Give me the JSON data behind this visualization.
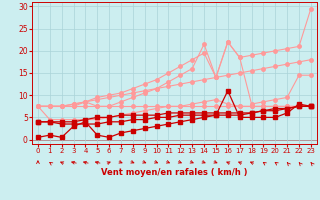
{
  "xlabel": "Vent moyen/en rafales ( km/h )",
  "xlim": [
    -0.5,
    23.5
  ],
  "ylim": [
    -1,
    31
  ],
  "xticks": [
    0,
    1,
    2,
    3,
    4,
    5,
    6,
    7,
    8,
    9,
    10,
    11,
    12,
    13,
    14,
    15,
    16,
    17,
    18,
    19,
    20,
    21,
    22,
    23
  ],
  "yticks": [
    0,
    5,
    10,
    15,
    20,
    25,
    30
  ],
  "bg_color": "#cceef0",
  "grid_color": "#aad4d8",
  "line_color_dark": "#cc0000",
  "line_color_light": "#ff9999",
  "series_light": [
    [
      7.5,
      7.5,
      7.5,
      7.5,
      7.5,
      7.5,
      7.5,
      7.5,
      7.5,
      7.5,
      7.5,
      7.5,
      7.5,
      7.5,
      7.5,
      7.5,
      7.5,
      7.5,
      7.5,
      7.5,
      7.5,
      7.5,
      7.5,
      7.5
    ],
    [
      7.5,
      7.5,
      7.5,
      8.0,
      8.5,
      9.0,
      9.5,
      10.0,
      10.5,
      11.0,
      11.5,
      12.0,
      12.5,
      13.0,
      13.5,
      14.0,
      14.5,
      15.0,
      15.5,
      16.0,
      16.5,
      17.0,
      17.5,
      18.0
    ],
    [
      7.5,
      7.5,
      7.5,
      7.5,
      8.5,
      9.5,
      10.0,
      10.5,
      11.5,
      12.5,
      13.5,
      15.0,
      16.5,
      18.0,
      19.5,
      14.0,
      22.0,
      18.5,
      19.0,
      19.5,
      20.0,
      20.5,
      21.0,
      29.5
    ],
    [
      7.5,
      7.5,
      7.5,
      8.0,
      8.5,
      7.5,
      7.5,
      8.5,
      9.5,
      10.5,
      11.5,
      13.0,
      14.5,
      16.0,
      21.5,
      14.0,
      22.0,
      18.5,
      8.0,
      8.5,
      9.0,
      9.5,
      14.5,
      14.5
    ],
    [
      7.5,
      4.5,
      4.5,
      4.5,
      4.5,
      4.5,
      5.0,
      5.5,
      6.0,
      6.5,
      7.0,
      7.5,
      7.5,
      8.0,
      8.5,
      9.0,
      8.0,
      7.5,
      7.5,
      7.5,
      7.5,
      7.5,
      7.5,
      7.5
    ]
  ],
  "series_dark": [
    [
      0.5,
      1.0,
      0.5,
      3.0,
      4.0,
      1.0,
      0.5,
      1.5,
      2.0,
      2.5,
      3.0,
      3.5,
      4.0,
      4.5,
      5.0,
      5.5,
      11.0,
      5.0,
      5.0,
      5.0,
      5.0,
      6.0,
      8.0,
      7.5
    ],
    [
      4.0,
      4.0,
      3.5,
      3.5,
      3.5,
      3.5,
      4.0,
      4.0,
      4.5,
      4.5,
      5.0,
      5.0,
      5.5,
      5.5,
      5.5,
      5.5,
      5.5,
      5.5,
      6.0,
      6.5,
      7.0,
      7.0,
      7.5,
      7.5
    ],
    [
      4.0,
      4.0,
      4.0,
      4.0,
      4.5,
      5.0,
      5.0,
      5.5,
      5.5,
      5.5,
      5.5,
      6.0,
      6.0,
      6.0,
      6.0,
      6.0,
      6.0,
      6.0,
      6.0,
      6.5,
      6.5,
      7.0,
      7.5,
      7.5
    ]
  ],
  "wind_dirs": [
    180,
    210,
    225,
    240,
    240,
    240,
    135,
    45,
    45,
    45,
    45,
    45,
    45,
    45,
    45,
    45,
    225,
    225,
    225,
    210,
    210,
    200,
    200,
    200
  ]
}
